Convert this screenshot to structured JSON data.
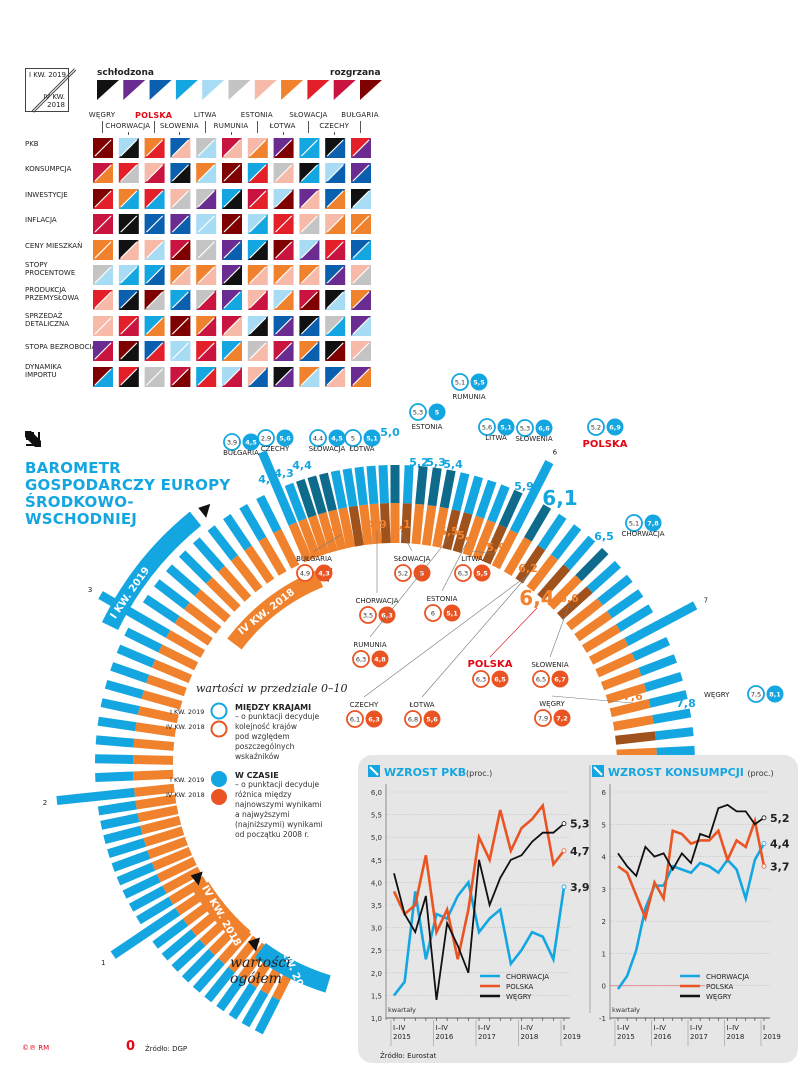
{
  "heatmap": {
    "key": {
      "top_label": "I KW. 2019",
      "bottom_label": "IV KW. 2018"
    },
    "scale": {
      "left_label": "schłodzona",
      "right_label": "rozgrzana",
      "colors": [
        "#111111",
        "#6a2c91",
        "#0a5fae",
        "#14a6e1",
        "#a8dcf5",
        "#c4c4c4",
        "#f7baa9",
        "#f0822d",
        "#e3202a",
        "#c8143f",
        "#7f0000"
      ]
    },
    "countries": [
      "WĘGRY",
      "CHORWACJA",
      "POLSKA",
      "SŁOWENIA",
      "LITWA",
      "RUMUNIA",
      "ESTONIA",
      "ŁOTWA",
      "SŁOWACJA",
      "CZECHY",
      "BUŁGARIA"
    ],
    "highlight_country": "POLSKA",
    "rows": [
      {
        "label": "PKB",
        "cells": [
          [
            "#7f0000",
            "#7f0000"
          ],
          [
            "#a8dcf5",
            "#111111"
          ],
          [
            "#f0822d",
            "#e3202a"
          ],
          [
            "#0a5fae",
            "#f7baa9"
          ],
          [
            "#c4c4c4",
            "#a8dcf5"
          ],
          [
            "#c8143f",
            "#f7baa9"
          ],
          [
            "#f7baa9",
            "#f0822d"
          ],
          [
            "#6a2c91",
            "#7f0000"
          ],
          [
            "#14a6e1",
            "#14a6e1"
          ],
          [
            "#111111",
            "#0a5fae"
          ],
          [
            "#e3202a",
            "#6a2c91"
          ]
        ]
      },
      {
        "label": "KONSUMPCJA",
        "cells": [
          [
            "#c8143f",
            "#f0822d"
          ],
          [
            "#e3202a",
            "#c4c4c4"
          ],
          [
            "#f7baa9",
            "#c8143f"
          ],
          [
            "#0a5fae",
            "#111111"
          ],
          [
            "#f0822d",
            "#a8dcf5"
          ],
          [
            "#7f0000",
            "#7f0000"
          ],
          [
            "#14a6e1",
            "#e3202a"
          ],
          [
            "#c4c4c4",
            "#f7baa9"
          ],
          [
            "#111111",
            "#14a6e1"
          ],
          [
            "#a8dcf5",
            "#0a5fae"
          ],
          [
            "#6a2c91",
            "#0a5fae"
          ]
        ]
      },
      {
        "label": "INWESTYCJE",
        "cells": [
          [
            "#7f0000",
            "#e3202a"
          ],
          [
            "#f0822d",
            "#14a6e1"
          ],
          [
            "#e3202a",
            "#14a6e1"
          ],
          [
            "#f7baa9",
            "#c4c4c4"
          ],
          [
            "#c4c4c4",
            "#6a2c91"
          ],
          [
            "#14a6e1",
            "#111111"
          ],
          [
            "#c8143f",
            "#e3202a"
          ],
          [
            "#a8dcf5",
            "#7f0000"
          ],
          [
            "#6a2c91",
            "#f7baa9"
          ],
          [
            "#0a5fae",
            "#f0822d"
          ],
          [
            "#111111",
            "#a8dcf5"
          ]
        ]
      },
      {
        "label": "INFLACJA",
        "cells": [
          [
            "#c8143f",
            "#c8143f"
          ],
          [
            "#111111",
            "#111111"
          ],
          [
            "#0a5fae",
            "#0a5fae"
          ],
          [
            "#6a2c91",
            "#0a5fae"
          ],
          [
            "#a8dcf5",
            "#a8dcf5"
          ],
          [
            "#7f0000",
            "#7f0000"
          ],
          [
            "#a8dcf5",
            "#14a6e1"
          ],
          [
            "#e3202a",
            "#e3202a"
          ],
          [
            "#f7baa9",
            "#c4c4c4"
          ],
          [
            "#f7baa9",
            "#f0822d"
          ],
          [
            "#f0822d",
            "#f0822d"
          ]
        ]
      },
      {
        "label": "CENY MIESZKAŃ",
        "cells": [
          [
            "#f0822d",
            "#f0822d"
          ],
          [
            "#111111",
            "#f7baa9"
          ],
          [
            "#f7baa9",
            "#a8dcf5"
          ],
          [
            "#c8143f",
            "#7f0000"
          ],
          [
            "#c4c4c4",
            "#c4c4c4"
          ],
          [
            "#6a2c91",
            "#0a5fae"
          ],
          [
            "#14a6e1",
            "#111111"
          ],
          [
            "#7f0000",
            "#c8143f"
          ],
          [
            "#a8dcf5",
            "#6a2c91"
          ],
          [
            "#e3202a",
            "#c8143f"
          ],
          [
            "#0a5fae",
            "#14a6e1"
          ]
        ]
      },
      {
        "label": "STOPY PROCENTOWE",
        "cells": [
          [
            "#c4c4c4",
            "#a8dcf5"
          ],
          [
            "#a8dcf5",
            "#14a6e1"
          ],
          [
            "#14a6e1",
            "#0a5fae"
          ],
          [
            "#f0822d",
            "#f7baa9"
          ],
          [
            "#f0822d",
            "#f7baa9"
          ],
          [
            "#6a2c91",
            "#111111"
          ],
          [
            "#f0822d",
            "#f7baa9"
          ],
          [
            "#f0822d",
            "#f7baa9"
          ],
          [
            "#f0822d",
            "#f7baa9"
          ],
          [
            "#0a5fae",
            "#6a2c91"
          ],
          [
            "#f7baa9",
            "#c4c4c4"
          ]
        ]
      },
      {
        "label": "PRODUKCJA PRZEMYSŁOWA",
        "cells": [
          [
            "#e3202a",
            "#f7baa9"
          ],
          [
            "#0a5fae",
            "#111111"
          ],
          [
            "#7f0000",
            "#c4c4c4"
          ],
          [
            "#14a6e1",
            "#0a5fae"
          ],
          [
            "#c4c4c4",
            "#c8143f"
          ],
          [
            "#6a2c91",
            "#14a6e1"
          ],
          [
            "#f7baa9",
            "#c8143f"
          ],
          [
            "#a8dcf5",
            "#f0822d"
          ],
          [
            "#c8143f",
            "#7f0000"
          ],
          [
            "#111111",
            "#a8dcf5"
          ],
          [
            "#f0822d",
            "#6a2c91"
          ]
        ]
      },
      {
        "label": "SPRZEDAŻ DETALICZNA",
        "cells": [
          [
            "#f7baa9",
            "#f7baa9"
          ],
          [
            "#e3202a",
            "#c8143f"
          ],
          [
            "#14a6e1",
            "#f0822d"
          ],
          [
            "#7f0000",
            "#7f0000"
          ],
          [
            "#f0822d",
            "#c8143f"
          ],
          [
            "#c8143f",
            "#f7baa9"
          ],
          [
            "#a8dcf5",
            "#111111"
          ],
          [
            "#0a5fae",
            "#6a2c91"
          ],
          [
            "#111111",
            "#0a5fae"
          ],
          [
            "#c4c4c4",
            "#14a6e1"
          ],
          [
            "#6a2c91",
            "#a8dcf5"
          ]
        ]
      },
      {
        "label": "STOPA BEZROBOCIA",
        "cells": [
          [
            "#6a2c91",
            "#c8143f"
          ],
          [
            "#7f0000",
            "#111111"
          ],
          [
            "#0a5fae",
            "#e3202a"
          ],
          [
            "#a8dcf5",
            "#a8dcf5"
          ],
          [
            "#e3202a",
            "#c8143f"
          ],
          [
            "#14a6e1",
            "#f0822d"
          ],
          [
            "#c4c4c4",
            "#f7baa9"
          ],
          [
            "#c8143f",
            "#6a2c91"
          ],
          [
            "#f0822d",
            "#0a5fae"
          ],
          [
            "#111111",
            "#7f0000"
          ],
          [
            "#f7baa9",
            "#c4c4c4"
          ]
        ]
      },
      {
        "label": "DYNAMIKA IMPORTU",
        "cells": [
          [
            "#7f0000",
            "#14a6e1"
          ],
          [
            "#e3202a",
            "#111111"
          ],
          [
            "#c4c4c4",
            "#c4c4c4"
          ],
          [
            "#c8143f",
            "#7f0000"
          ],
          [
            "#14a6e1",
            "#e3202a"
          ],
          [
            "#a8dcf5",
            "#c8143f"
          ],
          [
            "#f7baa9",
            "#0a5fae"
          ],
          [
            "#111111",
            "#6a2c91"
          ],
          [
            "#f0822d",
            "#a8dcf5"
          ],
          [
            "#0a5fae",
            "#f7baa9"
          ],
          [
            "#6a2c91",
            "#f0822d"
          ]
        ]
      }
    ]
  },
  "barometer": {
    "title_lines": [
      "BAROMETR",
      "GOSPODARCZY EUROPY",
      "ŚRODKOWO-",
      "WSCHODNIEJ"
    ],
    "band_outer_label": "I KW. 2019",
    "band_inner_label": "IV KW. 2018",
    "band_outer_label_bottom": "I KW. 2019",
    "band_inner_label_bottom": "IV KW. 2018",
    "scale_ticks": [
      "0",
      "1",
      "2",
      "3",
      "4",
      "6",
      "7",
      "8"
    ],
    "overall_label_lines": [
      "wartości",
      "ogółem"
    ],
    "source": "Źródło: DGP",
    "credit": "©℗ RM",
    "q1_2019": [
      {
        "country": "BUŁGARIA",
        "value": "4,2",
        "between": "3,9",
        "time": "4,5"
      },
      {
        "country": "CZECHY",
        "value": "4,3",
        "between": "2,9",
        "time": "5,6"
      },
      {
        "country": "SŁOWACJA",
        "value": "4,4",
        "between": "4,4",
        "time": "4,5"
      },
      {
        "country": "ŁOTWA",
        "value": "5,0",
        "between": "5",
        "time": "5,1"
      },
      {
        "country": "ESTONIA",
        "value": "5,2",
        "between": "5,3",
        "time": "5"
      },
      {
        "country": "RUMUNIA",
        "value": "5,3",
        "between": "5,1",
        "time": "5,5"
      },
      {
        "country": "LITWA",
        "value": "5,4",
        "between": "5,6",
        "time": "5,1"
      },
      {
        "country": "SŁOWENIA",
        "value": "5,9",
        "between": "5,3",
        "time": "6,6"
      },
      {
        "country": "POLSKA",
        "value": "6,1",
        "between": "5,2",
        "time": "6,9"
      },
      {
        "country": "CHORWACJA",
        "value": "6,5",
        "between": "5,1",
        "time": "7,8"
      },
      {
        "country": "WĘGRY",
        "value": "7,8",
        "between": "7,5",
        "time": "8,1"
      }
    ],
    "q4_2018": [
      {
        "country": "BUŁGARIA",
        "value": "4,6",
        "between": "4,9",
        "time": "4,3"
      },
      {
        "country": "CHORWACJA",
        "value": "4,9",
        "between": "3,5",
        "time": "6,3"
      },
      {
        "country": "SŁOWACJA",
        "value": "5,1",
        "between": "5,2",
        "time": "5"
      },
      {
        "country": "RUMUNIA",
        "value": "5,5",
        "between": "6,3",
        "time": "4,8"
      },
      {
        "country": "ESTONIA",
        "value": "5,6",
        "between": "6",
        "time": "5,1"
      },
      {
        "country": "LITWA",
        "value": "5,9",
        "between": "6,3",
        "time": "5,5"
      },
      {
        "country": "CZECHY",
        "value": "6,2",
        "between": "6,1",
        "time": "6,3"
      },
      {
        "country": "ŁOTWA",
        "value": "6,2",
        "between": "6,8",
        "time": "5,6"
      },
      {
        "country": "POLSKA",
        "value": "6,4",
        "between": "6,3",
        "time": "6,5"
      },
      {
        "country": "SŁOWENIA",
        "value": "6,6",
        "between": "6,5",
        "time": "6,7"
      },
      {
        "country": "WĘGRY",
        "value": "7,6",
        "between": "7,9",
        "time": "7,2"
      }
    ],
    "legend": {
      "heading": "wartości w przedziale 0–10",
      "q1": "I KW. 2019",
      "q4": "IV KW. 2018",
      "between_title": "MIĘDZY KRAJAMI",
      "between_desc": [
        "– o punktacji decyduje",
        "kolejność krajów",
        "pod względem",
        "poszczególnych",
        "wskaźników"
      ],
      "time_title": "W CZASIE",
      "time_desc": [
        "– o punktacji decyduje",
        "różnica między",
        "najnowszymi wynikami",
        "a najwyższymi",
        "(najniższymi) wynikami",
        "od początku 2008 r."
      ]
    }
  },
  "colors": {
    "blue": "#14a6e1",
    "dark_blue": "#0e6b8c",
    "orange": "#f0822d",
    "brown": "#a0521d",
    "red": "#e30613",
    "red_orange": "#ea5423",
    "panel_bg": "#e6e6e6"
  },
  "chart_data": [
    {
      "type": "line",
      "title": "WZROST PKB",
      "unit": "(proc.)",
      "xlabel": "kwartały",
      "x_tick_labels": [
        [
          "I–IV",
          "2015"
        ],
        [
          "I–IV",
          "2016"
        ],
        [
          "I–IV",
          "2017"
        ],
        [
          "I–IV",
          "2018"
        ],
        [
          "I",
          "2019"
        ]
      ],
      "ylim": [
        1.0,
        6.0
      ],
      "yticks": [
        "1,0",
        "1,5",
        "2,0",
        "2,5",
        "3,0",
        "3,5",
        "4,0",
        "4,5",
        "5,0",
        "5,5",
        "6,0"
      ],
      "grid": true,
      "legend_position": "bottom-right",
      "series": [
        {
          "name": "CHORWACJA",
          "color": "#14a6e1",
          "values": [
            1.5,
            1.8,
            3.8,
            2.3,
            3.3,
            3.2,
            3.7,
            4.0,
            2.9,
            3.2,
            3.4,
            2.2,
            2.5,
            2.9,
            2.8,
            2.3,
            3.9
          ],
          "end_label": "3,9"
        },
        {
          "name": "POLSKA",
          "color": "#ea5423",
          "values": [
            3.8,
            3.3,
            3.5,
            4.6,
            2.9,
            3.4,
            2.3,
            3.4,
            5.0,
            4.5,
            5.6,
            4.7,
            5.2,
            5.4,
            5.7,
            4.4,
            4.7
          ],
          "end_label": "4,7"
        },
        {
          "name": "WĘGRY",
          "color": "#111111",
          "values": [
            4.2,
            3.3,
            2.9,
            3.7,
            1.4,
            3.1,
            2.6,
            2.0,
            4.5,
            3.5,
            4.1,
            4.5,
            4.6,
            4.9,
            5.1,
            5.1,
            5.3
          ],
          "end_label": "5,3"
        }
      ],
      "source": "Źródło: Eurostat"
    },
    {
      "type": "line",
      "title": "WZROST KONSUMPCJI",
      "unit": "(proc.)",
      "xlabel": "kwartały",
      "x_tick_labels": [
        [
          "I–IV",
          "2015"
        ],
        [
          "I–IV",
          "2016"
        ],
        [
          "I–IV",
          "2017"
        ],
        [
          "I–IV",
          "2018"
        ],
        [
          "I",
          "2019"
        ]
      ],
      "ylim": [
        -1,
        6
      ],
      "yticks": [
        "-1",
        "0",
        "1",
        "2",
        "3",
        "4",
        "5",
        "6"
      ],
      "grid": true,
      "legend_position": "bottom-right",
      "series": [
        {
          "name": "CHORWACJA",
          "color": "#14a6e1",
          "values": [
            -0.1,
            0.3,
            1.1,
            2.4,
            3.1,
            3.1,
            3.7,
            3.6,
            3.5,
            3.8,
            3.7,
            3.5,
            3.9,
            3.6,
            2.7,
            3.9,
            4.4
          ],
          "end_label": "4,4"
        },
        {
          "name": "POLSKA",
          "color": "#ea5423",
          "values": [
            3.7,
            3.5,
            2.8,
            2.1,
            3.2,
            2.7,
            4.8,
            4.7,
            4.4,
            4.5,
            4.5,
            4.8,
            3.9,
            4.5,
            4.3,
            5.1,
            3.7
          ],
          "end_label": "3,7"
        },
        {
          "name": "WĘGRY",
          "color": "#111111",
          "values": [
            4.1,
            3.7,
            3.4,
            4.3,
            4.0,
            4.1,
            3.6,
            4.1,
            3.8,
            4.7,
            4.6,
            5.5,
            5.6,
            5.4,
            5.4,
            5.0,
            5.2
          ],
          "end_label": "5,2"
        }
      ]
    }
  ]
}
